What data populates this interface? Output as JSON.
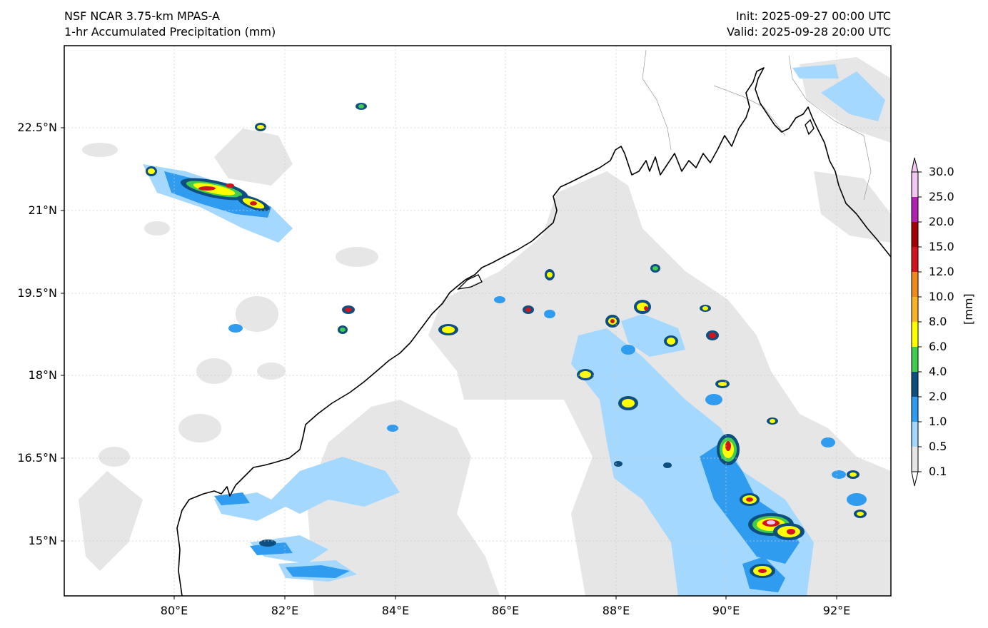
{
  "title": {
    "left_line1": "NSF NCAR 3.75-km MPAS-A",
    "left_line2": "1-hr Accumulated Precipitation (mm)",
    "right_line1": "Init: 2025-09-27 00:00 UTC",
    "right_line2": "Valid: 2025-09-28 20:00 UTC"
  },
  "axes": {
    "lat_labels": [
      "22.5°N",
      "21°N",
      "19.5°N",
      "18°N",
      "16.5°N",
      "15°N"
    ],
    "lon_labels": [
      "80°E",
      "82°E",
      "84°E",
      "86°E",
      "88°E",
      "90°E",
      "92°E"
    ]
  },
  "colorbar": {
    "unit": "[mm]",
    "levels": [
      "0.1",
      "0.5",
      "1.0",
      "2.0",
      "4.0",
      "6.0",
      "8.0",
      "10.0",
      "12.0",
      "15.0",
      "20.0",
      "25.0",
      "30.0"
    ],
    "colors": [
      "#e6e6e6",
      "#a5d8ff",
      "#2f9cf0",
      "#0f4f7f",
      "#3fcc4f",
      "#ffff00",
      "#f7b428",
      "#ee8a1e",
      "#d2141e",
      "#a00000",
      "#b022b0",
      "#f2c8f2"
    ]
  },
  "colors": {
    "trace": "#e6e6e6",
    "light_blue": "#a5d8ff",
    "blue": "#2f9cf0",
    "dark_blue": "#0f4f7f",
    "green": "#3fcc4f",
    "yellow": "#ffff00",
    "red": "#d2141e",
    "coast": "#000000"
  }
}
